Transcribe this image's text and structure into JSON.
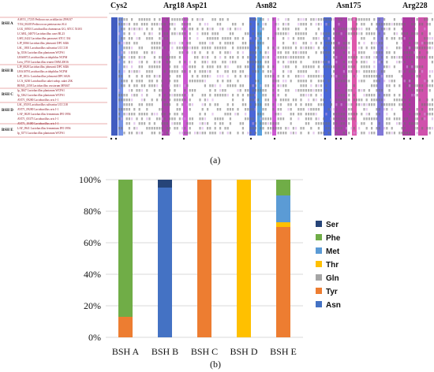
{
  "panel_a": {
    "caption": "(a)",
    "residue_labels": [
      "Cys2",
      "Arg18",
      "Asp21",
      "Asn82",
      "Asn175",
      "Arg228"
    ],
    "group_labels": [
      "BSH A",
      "BSH B",
      "BSH C",
      "BSH D",
      "BSH E"
    ],
    "sequence_names": [
      "AAV51_17235 Pediococcus acidilactici ZPA017",
      "T154_00205 Pediococcus pentosaceus SL4",
      "LGG_00501 Lactobacillus rhamnosus GG; ATCC 53103",
      "LCABL_04070 Lactobacillus casei BL23",
      "LSEI_0422 Lactobacillus paracasei ATCC 334",
      "LJP_0066 Lactobacillus johnsonii DPC 6026",
      "LSL_1801 Lactobacillus salivarius UCC118",
      "lp_3536 Lactobacillus plantarum WCFS1",
      "LBA0872 Lactobacillus acidophilus NCFM",
      "Lreu_0750 Lactobacillus reuteri DSM 20016",
      "LJP_0828 Lactobacillus johnsonii DPC 6026",
      "LBA1078 Lactobacillus acidophilus NCFM",
      "LJP_1811c Lactobacillus johnsonii DPC 6026",
      "LCA_0230 Lactobacillus sakei subsp. sakei 23K",
      "BEM3_2358 Lactobacillus crustorum MN047",
      "lp_3847 Lactobacillus plantarum WCFS1",
      "lp_3362 Lactobacillus plantarum WCFS1",
      "AYI71_09280 Lactobacillus oris J-1",
      "LSL_0518 Lactobacillus salivarius UCC118",
      "AYI71_09280 Lactobacillus oris J-1",
      "LAF_0028 Lactobacillus fermentum IFO 3956",
      "AYI71_05375 Lactobacillus oris J-1",
      "AYI71_10480 Lactobacillus oris J-1",
      "LAF_0941 Lactobacillus fermentum IFO 3956",
      "lp_3573 Lactobacillus plantarum WCFS1"
    ]
  },
  "chart_data": {
    "type": "bar",
    "stacked": true,
    "caption": "(b)",
    "categories": [
      "BSH A",
      "BSH B",
      "BSH C",
      "BSH D",
      "BSH E"
    ],
    "y_ticks": [
      "0%",
      "20%",
      "40%",
      "60%",
      "80%",
      "100%"
    ],
    "ylim": [
      0,
      100
    ],
    "legend_position": "right",
    "series": [
      {
        "name": "Asn",
        "color": "#4472c4",
        "values": [
          0,
          95,
          0,
          0,
          0
        ]
      },
      {
        "name": "Tyr",
        "color": "#ed7d31",
        "values": [
          13,
          0,
          100,
          0,
          70
        ]
      },
      {
        "name": "Gln",
        "color": "#a5a5a5",
        "values": [
          0,
          0,
          0,
          0,
          0
        ]
      },
      {
        "name": "Thr",
        "color": "#ffc000",
        "values": [
          0,
          0,
          0,
          100,
          3
        ]
      },
      {
        "name": "Met",
        "color": "#5b9bd5",
        "values": [
          0,
          0,
          0,
          0,
          17
        ]
      },
      {
        "name": "Phe",
        "color": "#70ad47",
        "values": [
          87,
          0,
          0,
          0,
          10
        ]
      },
      {
        "name": "Ser",
        "color": "#264478",
        "values": [
          0,
          5,
          0,
          0,
          0
        ]
      }
    ],
    "legend_order": [
      "Ser",
      "Phe",
      "Met",
      "Thr",
      "Gln",
      "Tyr",
      "Asn"
    ]
  }
}
